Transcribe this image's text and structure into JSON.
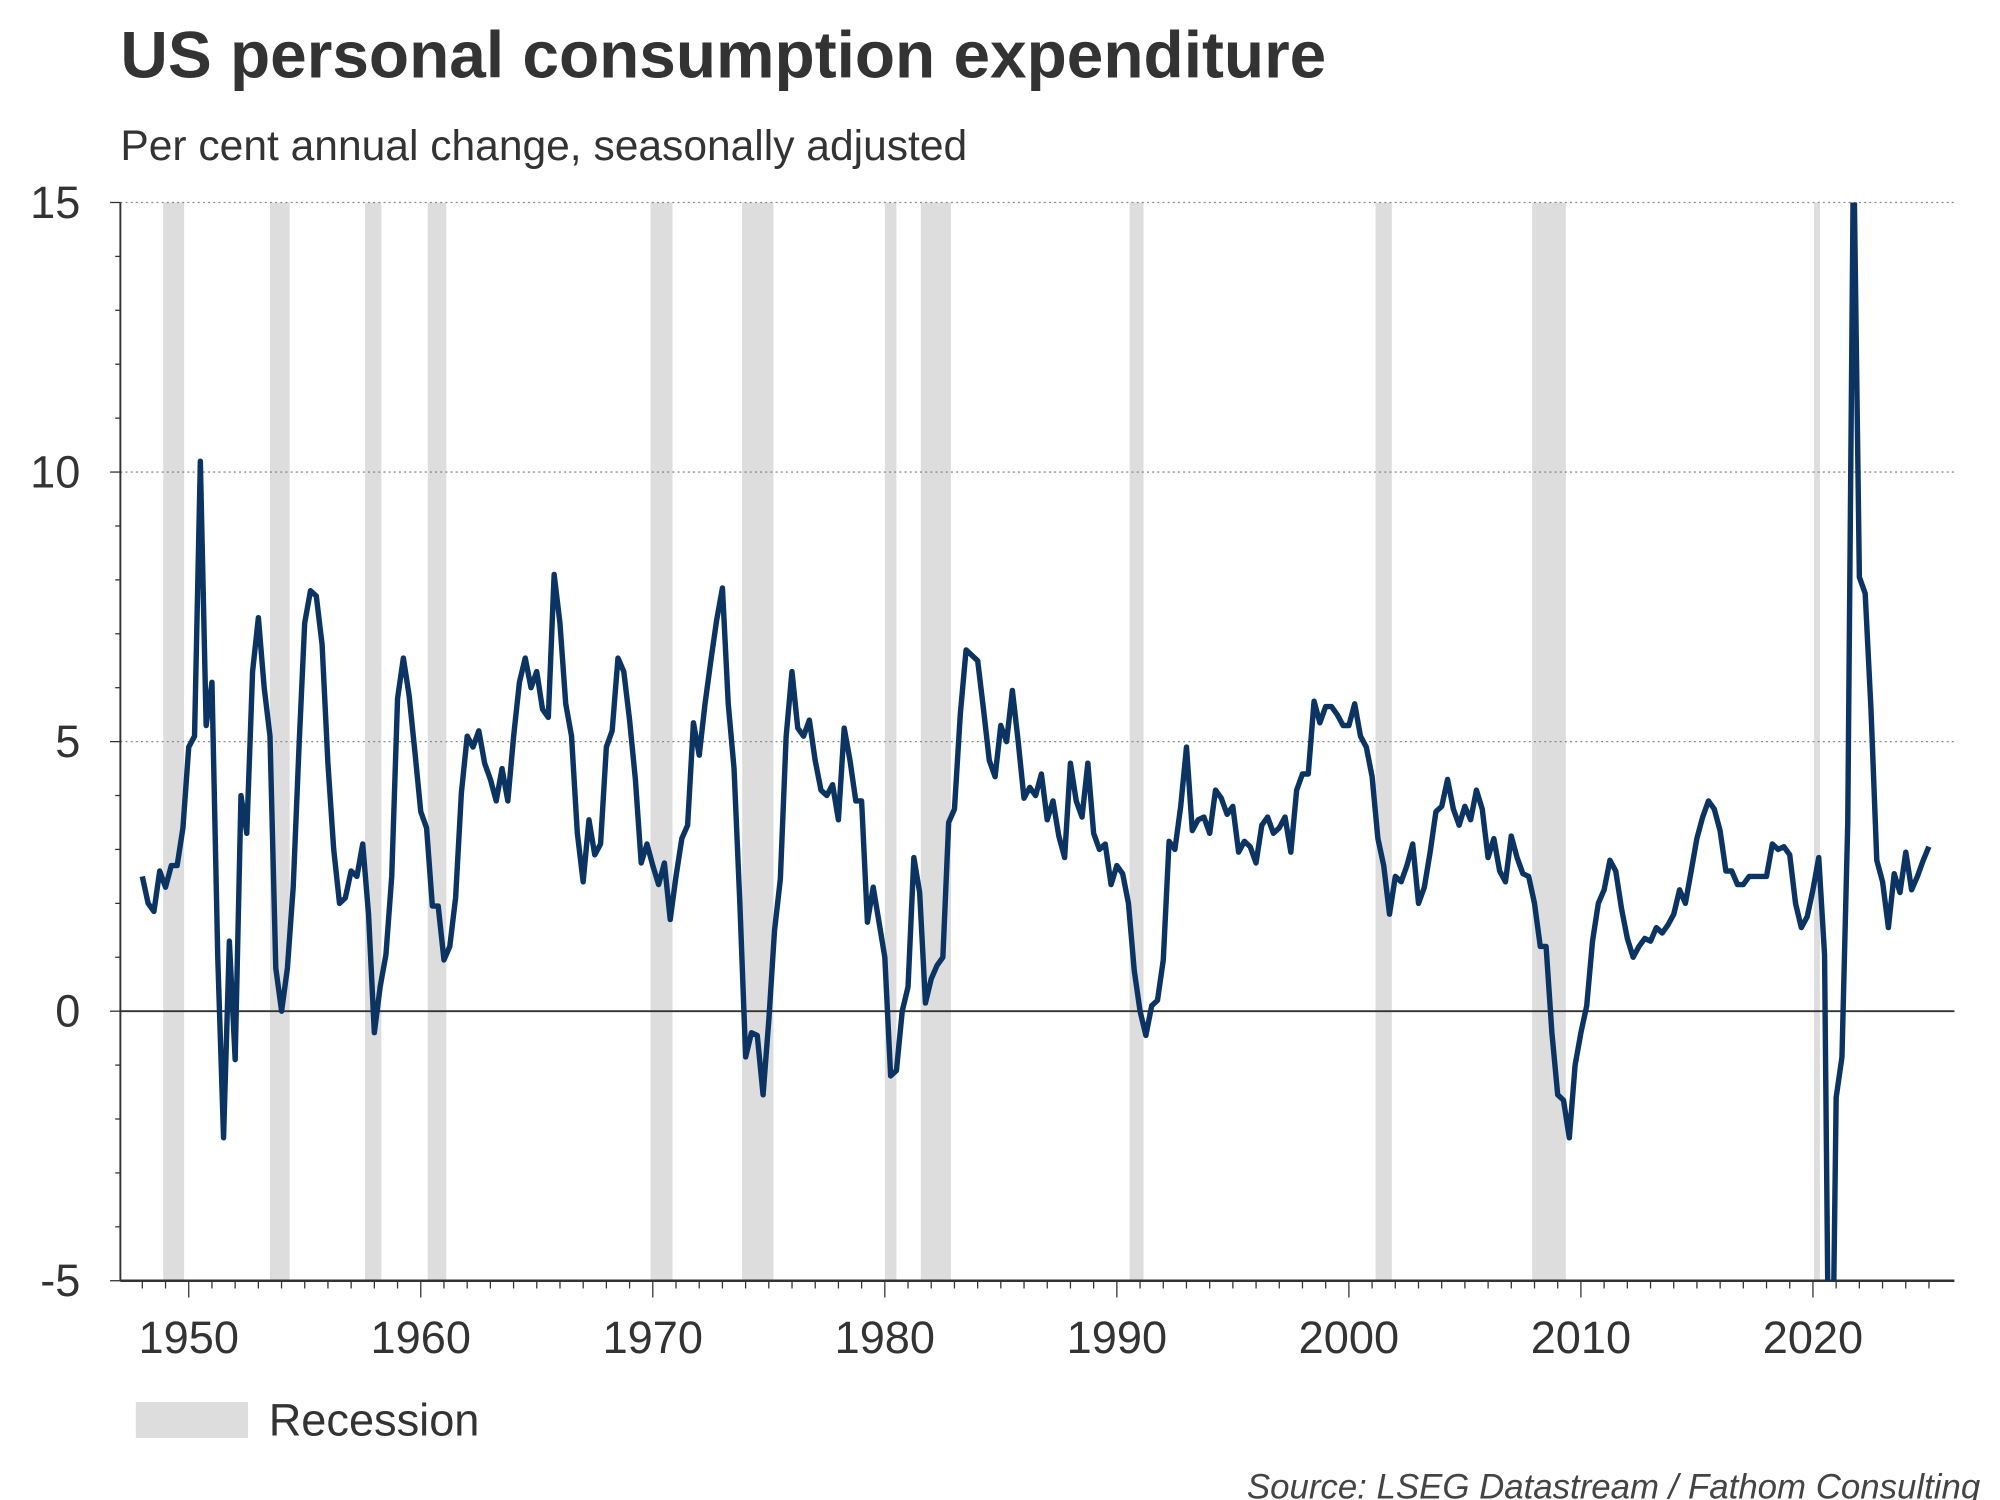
{
  "chart_data": {
    "type": "line",
    "title": "US personal consumption expenditure",
    "subtitle": "Per cent annual change, seasonally adjusted",
    "xlabel": "",
    "ylabel": "",
    "xlim": [
      1947,
      2026
    ],
    "ylim": [
      -5,
      15
    ],
    "x_ticks": [
      "1950",
      "1960",
      "1970",
      "1980",
      "1990",
      "2000",
      "2010",
      "2020"
    ],
    "y_ticks": [
      "15",
      "10",
      "5",
      "0",
      "-5"
    ],
    "grid": "horizontal dotted at 5, 10, 15",
    "legend_position": "bottom-left",
    "line_color": "#0b3463",
    "recession_color": "#dddddd",
    "series": [
      {
        "start": "1948 Q1",
        "frequency": "quarterly",
        "values": [
          2.5,
          2.0,
          1.85,
          2.6,
          2.3,
          2.7,
          2.7,
          3.4,
          4.9,
          5.1,
          10.2,
          5.3,
          6.1,
          1.0,
          -2.35,
          1.3,
          -0.9,
          4.0,
          3.3,
          6.3,
          7.3,
          6.0,
          5.1,
          0.8,
          0.0,
          0.8,
          2.3,
          4.9,
          7.2,
          7.8,
          7.7,
          6.8,
          4.6,
          3.0,
          2.0,
          2.1,
          2.6,
          2.5,
          3.1,
          1.8,
          -0.4,
          0.45,
          1.05,
          2.5,
          5.8,
          6.55,
          5.85,
          4.8,
          3.7,
          3.4,
          1.95,
          1.95,
          0.95,
          1.2,
          2.1,
          4.05,
          5.1,
          4.9,
          5.2,
          4.6,
          4.3,
          3.9,
          4.5,
          3.9,
          5.1,
          6.1,
          6.55,
          6.0,
          6.3,
          5.6,
          5.45,
          8.1,
          7.2,
          5.7,
          5.1,
          3.3,
          2.4,
          3.55,
          2.9,
          3.1,
          4.9,
          5.2,
          6.55,
          6.3,
          5.4,
          4.3,
          2.75,
          3.1,
          2.7,
          2.35,
          2.75,
          1.7,
          2.5,
          3.2,
          3.45,
          5.35,
          4.75,
          5.7,
          6.5,
          7.25,
          7.85,
          5.7,
          4.5,
          2.0,
          -0.85,
          -0.4,
          -0.45,
          -1.55,
          -0.15,
          1.5,
          2.45,
          5.1,
          6.3,
          5.25,
          5.1,
          5.4,
          4.65,
          4.1,
          4.0,
          4.2,
          3.55,
          5.25,
          4.65,
          3.9,
          3.9,
          1.65,
          2.3,
          1.65,
          1.0,
          -1.2,
          -1.1,
          0.0,
          0.45,
          2.85,
          2.2,
          0.15,
          0.6,
          0.85,
          1.0,
          3.5,
          3.75,
          5.5,
          6.7,
          6.6,
          6.5,
          5.6,
          4.65,
          4.35,
          5.3,
          5.0,
          5.95,
          5.0,
          3.95,
          4.15,
          4.0,
          4.4,
          3.55,
          3.9,
          3.25,
          2.85,
          4.6,
          3.9,
          3.6,
          4.6,
          3.3,
          3.0,
          3.1,
          2.35,
          2.7,
          2.55,
          2.0,
          0.75,
          0.0,
          -0.45,
          0.1,
          0.2,
          0.95,
          3.15,
          3.0,
          3.8,
          4.9,
          3.35,
          3.55,
          3.6,
          3.3,
          4.1,
          3.95,
          3.65,
          3.8,
          2.95,
          3.15,
          3.05,
          2.75,
          3.45,
          3.6,
          3.3,
          3.4,
          3.6,
          2.95,
          4.1,
          4.4,
          4.4,
          5.75,
          5.35,
          5.65,
          5.65,
          5.5,
          5.3,
          5.3,
          5.7,
          5.1,
          4.9,
          4.35,
          3.2,
          2.7,
          1.8,
          2.5,
          2.4,
          2.7,
          3.1,
          2.0,
          2.3,
          2.95,
          3.7,
          3.8,
          4.3,
          3.75,
          3.45,
          3.8,
          3.55,
          4.1,
          3.75,
          2.85,
          3.2,
          2.6,
          2.4,
          3.25,
          2.85,
          2.55,
          2.5,
          2.0,
          1.2,
          1.2,
          -0.4,
          -1.55,
          -1.65,
          -2.35,
          -1.0,
          -0.4,
          0.1,
          1.3,
          2.0,
          2.25,
          2.8,
          2.6,
          1.9,
          1.35,
          1.0,
          1.2,
          1.35,
          1.3,
          1.55,
          1.45,
          1.6,
          1.8,
          2.25,
          2.0,
          2.6,
          3.2,
          3.6,
          3.9,
          3.75,
          3.35,
          2.6,
          2.6,
          2.35,
          2.35,
          2.5,
          2.5,
          2.5,
          2.5,
          3.1,
          3.0,
          3.05,
          2.9,
          2.0,
          1.55,
          1.75,
          2.25,
          2.85,
          1.05,
          -10.1,
          -1.6,
          -0.85,
          3.5,
          16.2,
          8.05,
          7.75,
          5.6,
          2.8,
          2.4,
          1.55,
          2.55,
          2.2,
          2.95,
          2.25,
          2.5,
          2.8,
          3.05
        ]
      }
    ],
    "recessions": [
      [
        1948.9,
        1949.8
      ],
      [
        1953.5,
        1954.35
      ],
      [
        1957.6,
        1958.3
      ],
      [
        1960.3,
        1961.1
      ],
      [
        1969.9,
        1970.85
      ],
      [
        1973.85,
        1975.2
      ],
      [
        1980.0,
        1980.5
      ],
      [
        1981.55,
        1982.85
      ],
      [
        1990.55,
        1991.15
      ],
      [
        2001.15,
        2001.85
      ],
      [
        2007.9,
        2009.35
      ],
      [
        2020.05,
        2020.3
      ]
    ],
    "legend": [
      {
        "label": "Recession",
        "color": "#dddddd"
      }
    ],
    "source": "Source: LSEG Datastream / Fathom Consulting"
  }
}
